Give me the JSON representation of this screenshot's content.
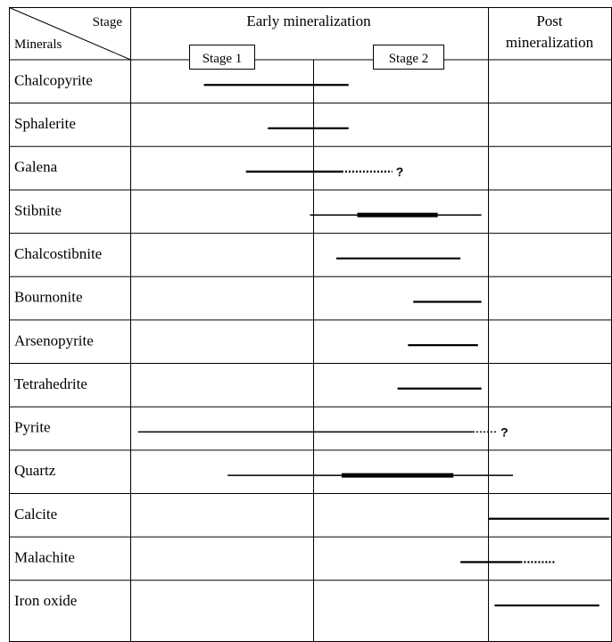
{
  "header": {
    "stage_label": "Stage",
    "minerals_label": "Minerals",
    "early_title": "Early mineralization",
    "stage1_label": "Stage 1",
    "stage2_label": "Stage 2",
    "post_title_line1": "Post",
    "post_title_line2": "mineralization"
  },
  "uncertain_marker": "?",
  "minerals": [
    {
      "name": "Chalcopyrite",
      "bars": [
        {
          "from": 0.4,
          "to": 1.2,
          "weight": "medium",
          "style": "solid"
        }
      ]
    },
    {
      "name": "Sphalerite",
      "bars": [
        {
          "from": 0.75,
          "to": 1.2,
          "weight": "medium",
          "style": "solid"
        }
      ]
    },
    {
      "name": "Galena",
      "bars": [
        {
          "from": 0.63,
          "to": 1.16,
          "weight": "medium",
          "style": "solid"
        },
        {
          "from": 1.16,
          "to": 1.45,
          "weight": "medium",
          "style": "dotted",
          "uncertain": true
        }
      ]
    },
    {
      "name": "Stibnite",
      "bars": [
        {
          "from": 0.98,
          "to": 1.25,
          "weight": "thin",
          "style": "solid"
        },
        {
          "from": 1.25,
          "to": 1.71,
          "weight": "thick",
          "style": "solid"
        },
        {
          "from": 1.71,
          "to": 1.96,
          "weight": "thin",
          "style": "solid"
        }
      ]
    },
    {
      "name": "Chalcostibnite",
      "bars": [
        {
          "from": 1.13,
          "to": 1.84,
          "weight": "medium",
          "style": "solid"
        }
      ]
    },
    {
      "name": "Bournonite",
      "bars": [
        {
          "from": 1.57,
          "to": 1.96,
          "weight": "medium",
          "style": "solid"
        }
      ]
    },
    {
      "name": "Arsenopyrite",
      "bars": [
        {
          "from": 1.54,
          "to": 1.94,
          "weight": "medium",
          "style": "solid"
        }
      ]
    },
    {
      "name": "Tetrahedrite",
      "bars": [
        {
          "from": 1.48,
          "to": 1.96,
          "weight": "medium",
          "style": "solid"
        }
      ]
    },
    {
      "name": "Pyrite",
      "bars": [
        {
          "from": 0.04,
          "to": 1.91,
          "weight": "thin",
          "style": "solid"
        },
        {
          "from": 1.91,
          "to": 2.07,
          "weight": "thin",
          "style": "dotted",
          "uncertain": true
        }
      ]
    },
    {
      "name": "Quartz",
      "bars": [
        {
          "from": 0.53,
          "to": 1.16,
          "weight": "thin",
          "style": "solid"
        },
        {
          "from": 1.16,
          "to": 1.8,
          "weight": "thick",
          "style": "solid"
        },
        {
          "from": 1.8,
          "to": 2.2,
          "weight": "thin",
          "style": "solid"
        }
      ]
    },
    {
      "name": "Calcite",
      "bars": [
        {
          "from": 2.0,
          "to": 2.98,
          "weight": "medium",
          "style": "solid"
        }
      ]
    },
    {
      "name": "Malachite",
      "bars": [
        {
          "from": 1.84,
          "to": 2.26,
          "weight": "medium",
          "style": "solid"
        },
        {
          "from": 2.26,
          "to": 2.55,
          "weight": "medium",
          "style": "dotted"
        }
      ]
    },
    {
      "name": "Iron oxide",
      "bars": [
        {
          "from": 2.05,
          "to": 2.9,
          "weight": "medium",
          "style": "solid"
        }
      ]
    }
  ]
}
